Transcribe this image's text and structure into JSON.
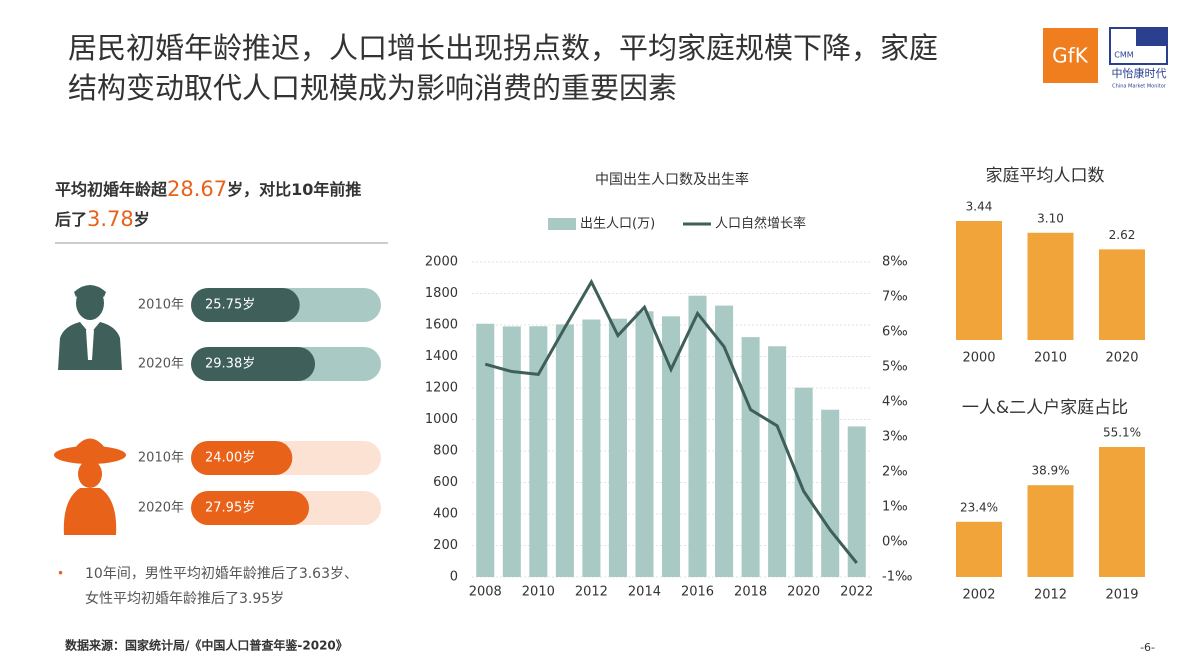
{
  "header": {
    "title_lines": [
      "居民初婚年龄推迟，人口增长出现拐点数，平均家庭规模下降，家庭",
      "结构变动取代人口规模成为影响消费的重要因素"
    ],
    "logos": {
      "gfk": "GfK",
      "cmm": "CMM",
      "cmm_name": "中怡康时代",
      "cmm_english": "China Market Monitor"
    }
  },
  "left_panel": {
    "headline_lines": [
      [
        "平均初婚年龄超",
        "28.67",
        "岁，对比10年前推"
      ],
      [
        "后了",
        "3.78",
        "岁"
      ]
    ],
    "note_lines": [
      "10年间，男性平均初婚年龄推后了3.63岁、",
      "女性平均初婚年龄推后了3.95岁"
    ]
  },
  "chart_data": [
    {
      "type": "combo",
      "title": "中国出生人口数及出生率",
      "x": [
        2008,
        2009,
        2010,
        2011,
        2012,
        2013,
        2014,
        2015,
        2016,
        2017,
        2018,
        2019,
        2020,
        2021,
        2022
      ],
      "xlim": [
        2007.5,
        2022.5
      ],
      "xticks": [
        2008,
        2010,
        2012,
        2014,
        2016,
        2018,
        2020,
        2022
      ],
      "ylim": [
        0,
        2000
      ],
      "yticks": [
        0,
        200,
        400,
        600,
        800,
        1000,
        1200,
        1400,
        1600,
        1800,
        2000
      ],
      "y2lim": [
        -1,
        8
      ],
      "y2ticks": [
        {
          "value": -1,
          "label": "-1‰"
        },
        {
          "value": 0,
          "label": "0‰"
        },
        {
          "value": 1,
          "label": "1‰"
        },
        {
          "value": 2,
          "label": "2‰"
        },
        {
          "value": 3,
          "label": "3‰"
        },
        {
          "value": 4,
          "label": "4‰"
        },
        {
          "value": 5,
          "label": "5‰"
        },
        {
          "value": 6,
          "label": "6‰"
        },
        {
          "value": 7,
          "label": "7‰"
        },
        {
          "value": 8,
          "label": "8‰"
        }
      ],
      "grid": true,
      "series": [
        {
          "name": "出生人口(万)",
          "type": "bar",
          "color": "#a9c9c4",
          "values": [
            1608,
            1591,
            1592,
            1604,
            1635,
            1640,
            1687,
            1655,
            1786,
            1723,
            1523,
            1465,
            1202,
            1062,
            956
          ]
        },
        {
          "name": "人口自然增长率",
          "type": "line",
          "axis": "y2",
          "color": "#3f5f5a",
          "values": [
            5.08,
            4.87,
            4.79,
            6.13,
            7.43,
            5.9,
            6.71,
            4.93,
            6.53,
            5.58,
            3.78,
            3.32,
            1.45,
            0.34,
            -0.6
          ]
        }
      ]
    },
    {
      "type": "bar",
      "title": "家庭平均人口数",
      "categories": [
        "2000",
        "2010",
        "2020"
      ],
      "values": [
        3.44,
        3.1,
        2.62
      ],
      "value_labels": [
        "3.44",
        "3.10",
        "2.62"
      ],
      "color": "#f0a43a"
    },
    {
      "type": "bar",
      "title": "一人&二人户家庭占比",
      "categories": [
        "2002",
        "2012",
        "2019"
      ],
      "values": [
        23.4,
        38.9,
        55.1
      ],
      "value_labels": [
        "23.4%",
        "38.9%",
        "55.1%"
      ],
      "color": "#f0a43a"
    },
    {
      "type": "progress",
      "groups": [
        {
          "color": "#3f5f5a",
          "track": "#a9c9c4",
          "categories": [
            "2010年",
            "2020年"
          ],
          "values": [
            25.75,
            29.38
          ],
          "value_labels": [
            "25.75岁",
            "29.38岁"
          ]
        },
        {
          "color": "#e8621a",
          "track": "#fbe2d3",
          "categories": [
            "2010年",
            "2020年"
          ],
          "values": [
            24.0,
            27.95
          ],
          "value_labels": [
            "24.00岁",
            "27.95岁"
          ]
        }
      ]
    }
  ],
  "footer": {
    "source": "数据来源：国家统计局/《中国人口普查年鉴-2020》",
    "page": "-6-"
  }
}
